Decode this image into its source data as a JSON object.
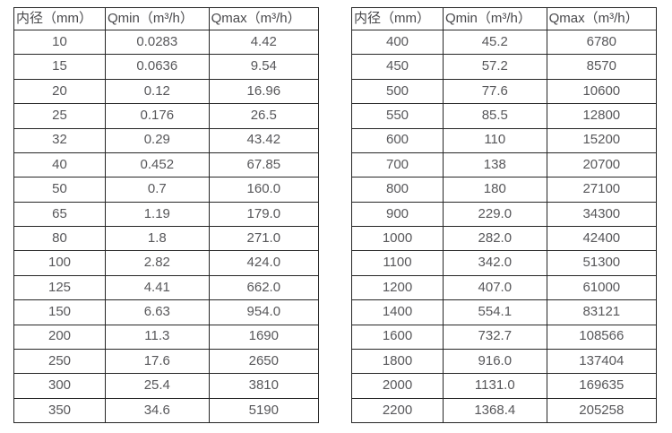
{
  "page": {
    "background": "#ffffff",
    "border_color": "#262626",
    "text_color": "#57575a"
  },
  "tables": [
    {
      "name": "flow-table-small-diameters",
      "headers": [
        "内径（mm）",
        "Qmin（m³/h）",
        "Qmax（m³/h）"
      ],
      "rows": [
        [
          "10",
          "0.0283",
          "4.42"
        ],
        [
          "15",
          "0.0636",
          "9.54"
        ],
        [
          "20",
          "0.12",
          "16.96"
        ],
        [
          "25",
          "0.176",
          "26.5"
        ],
        [
          "32",
          "0.29",
          "43.42"
        ],
        [
          "40",
          "0.452",
          "67.85"
        ],
        [
          "50",
          "0.7",
          "160.0"
        ],
        [
          "65",
          "1.19",
          "179.0"
        ],
        [
          "80",
          "1.8",
          "271.0"
        ],
        [
          "100",
          "2.82",
          "424.0"
        ],
        [
          "125",
          "4.41",
          "662.0"
        ],
        [
          "150",
          "6.63",
          "954.0"
        ],
        [
          "200",
          "11.3",
          "1690"
        ],
        [
          "250",
          "17.6",
          "2650"
        ],
        [
          "300",
          "25.4",
          "3810"
        ],
        [
          "350",
          "34.6",
          "5190"
        ]
      ]
    },
    {
      "name": "flow-table-large-diameters",
      "headers": [
        "内径（mm）",
        "Qmin（m³/h）",
        "Qmax（m³/h）"
      ],
      "rows": [
        [
          "400",
          "45.2",
          "6780"
        ],
        [
          "450",
          "57.2",
          "8570"
        ],
        [
          "500",
          "77.6",
          "10600"
        ],
        [
          "550",
          "85.5",
          "12800"
        ],
        [
          "600",
          "110",
          "15200"
        ],
        [
          "700",
          "138",
          "20700"
        ],
        [
          "800",
          "180",
          "27100"
        ],
        [
          "900",
          "229.0",
          "34300"
        ],
        [
          "1000",
          "282.0",
          "42400"
        ],
        [
          "1100",
          "342.0",
          "51300"
        ],
        [
          "1200",
          "407.0",
          "61000"
        ],
        [
          "1400",
          "554.1",
          "83121"
        ],
        [
          "1600",
          "732.7",
          "108566"
        ],
        [
          "1800",
          "916.0",
          "137404"
        ],
        [
          "2000",
          "1131.0",
          "169635"
        ],
        [
          "2200",
          "1368.4",
          "205258"
        ]
      ]
    }
  ]
}
